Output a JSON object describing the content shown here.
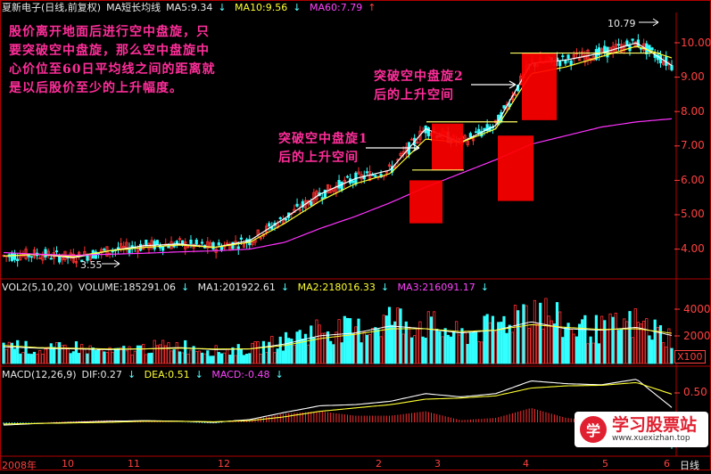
{
  "header": {
    "stock": "夏新电子(日线,前复权)",
    "ma_title": "MA短长均线",
    "ma5": "MA5:9.34",
    "ma10": "MA10:9.56",
    "ma60": "MA60:7.79",
    "vol": "VOL2(5,10,20)",
    "volume": "VOLUME:185291.06",
    "vma1": "MA1:201922.61",
    "vma2": "MA2:218016.33",
    "vma3": "MA3:216091.17",
    "macd": "MACD(12,26,9)",
    "dif": "DIF:0.27",
    "dea": "DEA:0.51",
    "macdv": "MACD:-0.48"
  },
  "notes": {
    "main_line1": "股价离开地面后进行空中盘旋，只",
    "main_line2": "要突破空中盘旋，那么空中盘旋中",
    "main_line3": "心价位至60日平均线之间的距离就",
    "main_line4": "是以后股价至少的上升幅度。",
    "n1_line1": "突破空中盘旋1",
    "n1_line2": "后的上升空间",
    "n2_line1": "突破空中盘旋2",
    "n2_line2": "后的上升空间",
    "high": "10.79",
    "low": "3.55"
  },
  "axes": {
    "price_ticks": [
      "10.00",
      "9.00",
      "8.00",
      "7.00",
      "6.00",
      "5.00",
      "4.00"
    ],
    "vol_ticks": [
      "4000",
      "2000"
    ],
    "vol_unit": "X100",
    "macd_ticks": [
      "0.50"
    ],
    "dates": [
      "2008年",
      "10",
      "11",
      "12",
      "2",
      "3",
      "4",
      "5",
      "6"
    ],
    "period": "日线"
  },
  "watermark": {
    "logo_char": "学",
    "name": "学习股票站",
    "url": "www.xuexizhan.top"
  },
  "colors": {
    "up": "#ff3030",
    "down": "#33ffff",
    "ma5": "#ffffff",
    "ma10": "#ffff33",
    "ma60": "#ff33ff",
    "box": "#ff0000",
    "hline": "#ffff66"
  },
  "chart_data": [
    {
      "type": "line",
      "title": "夏新电子(日线,前复权)",
      "ylim": [
        3.3,
        11.0
      ],
      "series": [
        {
          "name": "MA5",
          "values": [
            3.8,
            3.85,
            3.75,
            3.95,
            4.1,
            4.15,
            4.05,
            4.25,
            4.9,
            5.6,
            6.05,
            6.3,
            7.5,
            7.1,
            7.6,
            9.4,
            9.5,
            9.7,
            10.0,
            9.34
          ]
        },
        {
          "name": "MA10",
          "values": [
            3.8,
            3.85,
            3.78,
            3.95,
            4.05,
            4.12,
            4.05,
            4.2,
            4.75,
            5.4,
            5.9,
            6.2,
            7.2,
            7.1,
            7.5,
            9.1,
            9.3,
            9.6,
            9.9,
            9.56
          ]
        },
        {
          "name": "MA60",
          "values": [
            3.9,
            3.85,
            3.82,
            3.85,
            3.88,
            3.92,
            3.95,
            4.0,
            4.2,
            4.6,
            4.95,
            5.35,
            5.8,
            6.2,
            6.6,
            7.05,
            7.3,
            7.55,
            7.7,
            7.79
          ]
        }
      ],
      "annotations": [
        "10.79",
        "3.55"
      ],
      "zones": [
        {
          "label": "突破空中盘旋1",
          "low": 4.75,
          "high": 6.0
        },
        {
          "label": "突破空中盘旋1",
          "low": 6.3,
          "high": 7.65
        },
        {
          "label": "突破空中盘旋2",
          "low": 5.4,
          "high": 7.3
        },
        {
          "label": "突破空中盘旋2",
          "low": 7.75,
          "high": 9.7
        }
      ]
    },
    {
      "type": "bar",
      "title": "VOL2(5,10,20)",
      "ylim": [
        0,
        5000
      ],
      "series": [
        {
          "name": "VOLUME",
          "values": [
            1500,
            900,
            1200,
            800,
            1100,
            1300,
            900,
            1000,
            1600,
            2500,
            2300,
            3200,
            2800,
            2000,
            2600,
            4300,
            2600,
            2400,
            2900,
            1853
          ]
        },
        {
          "name": "MA1",
          "values": [
            1200,
            1100,
            1050,
            1000,
            1050,
            1150,
            1000,
            1050,
            1400,
            2000,
            2200,
            2700,
            2500,
            2200,
            2400,
            3000,
            2500,
            2400,
            2600,
            2019
          ]
        },
        {
          "name": "MA2",
          "values": [
            1300,
            1150,
            1100,
            1050,
            1050,
            1100,
            1050,
            1050,
            1300,
            1800,
            2100,
            2500,
            2500,
            2300,
            2400,
            2800,
            2600,
            2450,
            2500,
            2180
          ]
        }
      ]
    },
    {
      "type": "line",
      "title": "MACD(12,26,9)",
      "series": [
        {
          "name": "DIF",
          "values": [
            -0.05,
            -0.02,
            0.0,
            0.02,
            0.03,
            0.02,
            0.0,
            0.05,
            0.18,
            0.3,
            0.32,
            0.38,
            0.52,
            0.46,
            0.52,
            0.75,
            0.7,
            0.68,
            0.78,
            0.27
          ]
        },
        {
          "name": "DEA",
          "values": [
            -0.03,
            -0.02,
            -0.01,
            0.0,
            0.02,
            0.02,
            0.01,
            0.03,
            0.1,
            0.2,
            0.26,
            0.32,
            0.42,
            0.44,
            0.48,
            0.62,
            0.66,
            0.67,
            0.72,
            0.51
          ]
        }
      ]
    }
  ]
}
